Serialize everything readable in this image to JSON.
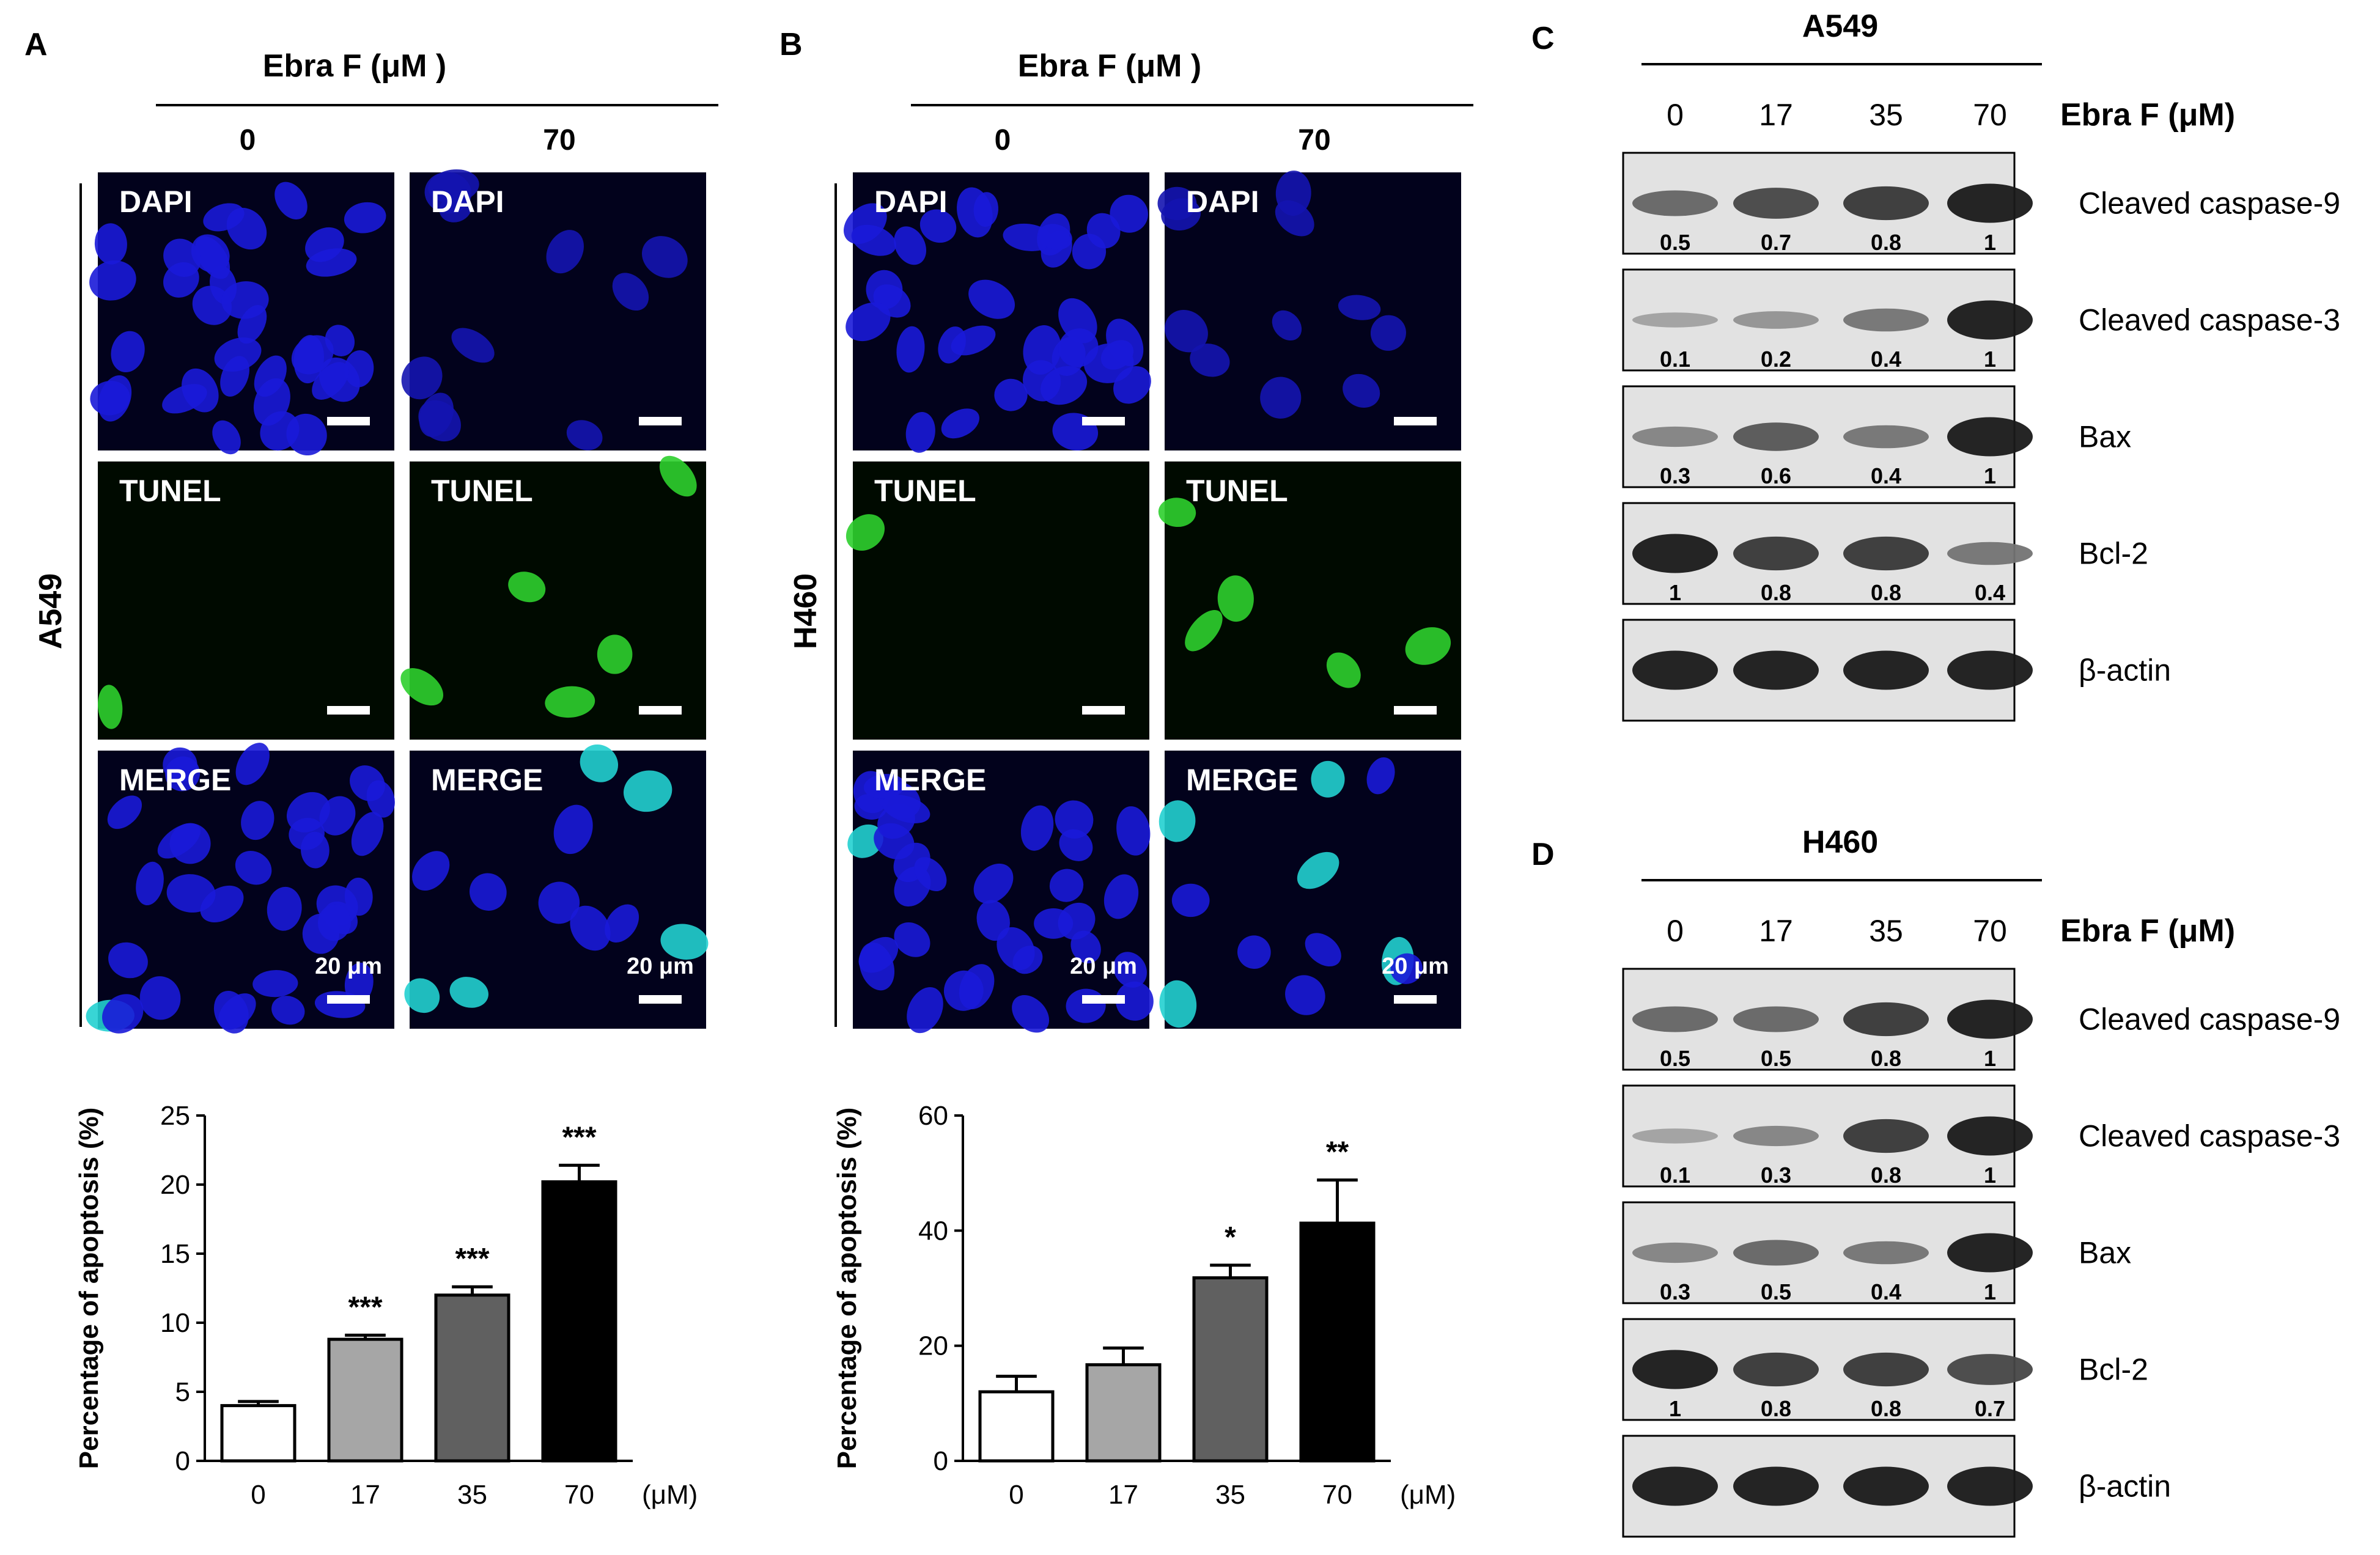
{
  "panels": {
    "A": {
      "letter": "A",
      "treatment": "Ebra F (μM )",
      "doses": [
        "0",
        "70"
      ],
      "cell_line": "A549",
      "image_rows": [
        "DAPI",
        "TUNEL",
        "MERGE"
      ],
      "scale_bar": "20 μm"
    },
    "B": {
      "letter": "B",
      "treatment": "Ebra F (μM )",
      "doses": [
        "0",
        "70"
      ],
      "cell_line": "H460",
      "image_rows": [
        "DAPI",
        "TUNEL",
        "MERGE"
      ],
      "scale_bar": "20 μm"
    },
    "C": {
      "letter": "C",
      "cell_line": "A549",
      "treatment": "Ebra F (μM)",
      "doses": [
        "0",
        "17",
        "35",
        "70"
      ],
      "proteins": [
        {
          "name": "Cleaved caspase-9",
          "quant": [
            "0.5",
            "0.7",
            "0.8",
            "1"
          ],
          "intensity": [
            0.5,
            0.7,
            0.8,
            1
          ]
        },
        {
          "name": "Cleaved caspase-3",
          "quant": [
            "0.1",
            "0.2",
            "0.4",
            "1"
          ],
          "intensity": [
            0.1,
            0.2,
            0.4,
            1
          ]
        },
        {
          "name": "Bax",
          "quant": [
            "0.3",
            "0.6",
            "0.4",
            "1"
          ],
          "intensity": [
            0.3,
            0.6,
            0.4,
            1
          ]
        },
        {
          "name": "Bcl-2",
          "quant": [
            "1",
            "0.8",
            "0.8",
            "0.4"
          ],
          "intensity": [
            1,
            0.8,
            0.8,
            0.4
          ]
        },
        {
          "name": "β-actin",
          "quant": [],
          "intensity": [
            1,
            1,
            1,
            1
          ]
        }
      ]
    },
    "D": {
      "letter": "D",
      "cell_line": "H460",
      "treatment": "Ebra F (μM)",
      "doses": [
        "0",
        "17",
        "35",
        "70"
      ],
      "proteins": [
        {
          "name": "Cleaved caspase-9",
          "quant": [
            "0.5",
            "0.5",
            "0.8",
            "1"
          ],
          "intensity": [
            0.5,
            0.5,
            0.8,
            1
          ]
        },
        {
          "name": "Cleaved caspase-3",
          "quant": [
            "0.1",
            "0.3",
            "0.8",
            "1"
          ],
          "intensity": [
            0.1,
            0.3,
            0.8,
            1
          ]
        },
        {
          "name": "Bax",
          "quant": [
            "0.3",
            "0.5",
            "0.4",
            "1"
          ],
          "intensity": [
            0.3,
            0.5,
            0.4,
            1
          ]
        },
        {
          "name": "Bcl-2",
          "quant": [
            "1",
            "0.8",
            "0.8",
            "0.7"
          ],
          "intensity": [
            1,
            0.8,
            0.8,
            0.7
          ]
        },
        {
          "name": "β-actin",
          "quant": [],
          "intensity": [
            1,
            1,
            1,
            1
          ]
        }
      ]
    }
  },
  "chart_data": [
    {
      "type": "bar",
      "panel": "A",
      "categories": [
        "0",
        "17",
        "35",
        "70"
      ],
      "x_unit": "(μM)",
      "ylabel": "Percentage of apoptosis (%)",
      "ylim": [
        0,
        25
      ],
      "yticks": [
        "0",
        "5",
        "10",
        "15",
        "20",
        "25"
      ],
      "values": [
        4.0,
        8.8,
        12.0,
        20.2
      ],
      "errors": [
        0.3,
        0.3,
        0.6,
        1.2
      ],
      "significance": [
        "",
        "***",
        "***",
        "***"
      ],
      "bar_colors": [
        "#ffffff",
        "#a6a6a6",
        "#606060",
        "#000000"
      ]
    },
    {
      "type": "bar",
      "panel": "B",
      "categories": [
        "0",
        "17",
        "35",
        "70"
      ],
      "x_unit": "(μM)",
      "ylabel": "Percentage of apoptosis (%)",
      "ylim": [
        0,
        60
      ],
      "yticks": [
        "0",
        "20",
        "40",
        "60"
      ],
      "values": [
        12.0,
        16.7,
        31.8,
        41.3
      ],
      "errors": [
        2.7,
        2.9,
        2.2,
        7.5
      ],
      "significance": [
        "",
        "",
        "*",
        "**"
      ],
      "bar_colors": [
        "#ffffff",
        "#a6a6a6",
        "#606060",
        "#000000"
      ]
    }
  ]
}
